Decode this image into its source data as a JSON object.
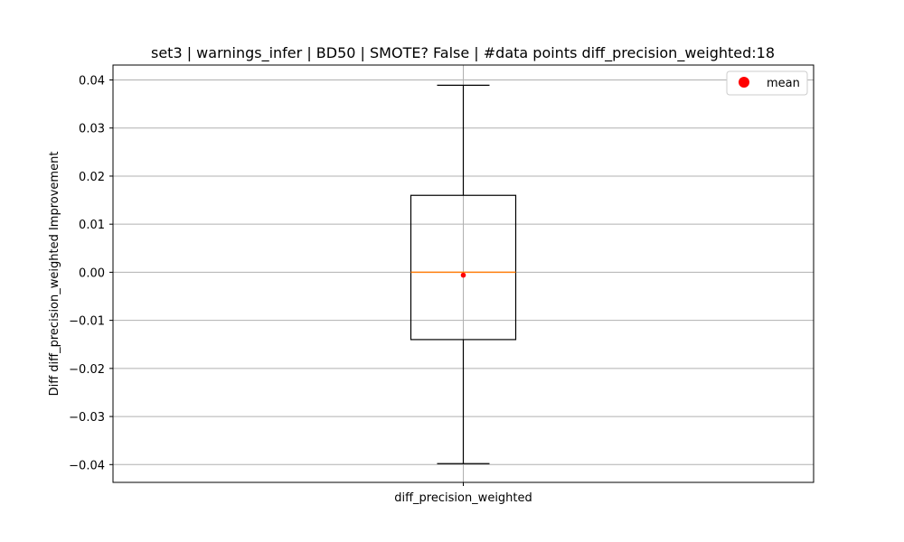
{
  "chart_data": {
    "type": "box",
    "title": "set3 | warnings_infer | BD50 | SMOTE? False | #data points diff_precision_weighted:18",
    "xlabel": "",
    "ylabel": "Diff diff_precision_weighted Improvement",
    "categories": [
      "diff_precision_weighted"
    ],
    "ylim": [
      -0.0437,
      0.0431
    ],
    "yticks": [
      0.04,
      0.03,
      0.02,
      0.01,
      0.0,
      -0.01,
      -0.02,
      -0.03,
      -0.04
    ],
    "ytick_labels": [
      "0.04",
      "0.03",
      "0.02",
      "0.01",
      "0.00",
      "−0.01",
      "−0.02",
      "−0.03",
      "−0.04"
    ],
    "grid": true,
    "legend": {
      "position": "top-right",
      "entries": [
        {
          "label": "mean",
          "color": "#ff0000"
        }
      ]
    },
    "box": {
      "whisker_low": -0.0398,
      "q1": -0.014,
      "median": 0.0,
      "q3": 0.016,
      "whisker_high": 0.0389,
      "mean": -0.0006
    },
    "colors": {
      "box": "#000000",
      "median": "#ff7f0e",
      "mean": "#ff0000",
      "grid": "#b0b0b0"
    }
  }
}
